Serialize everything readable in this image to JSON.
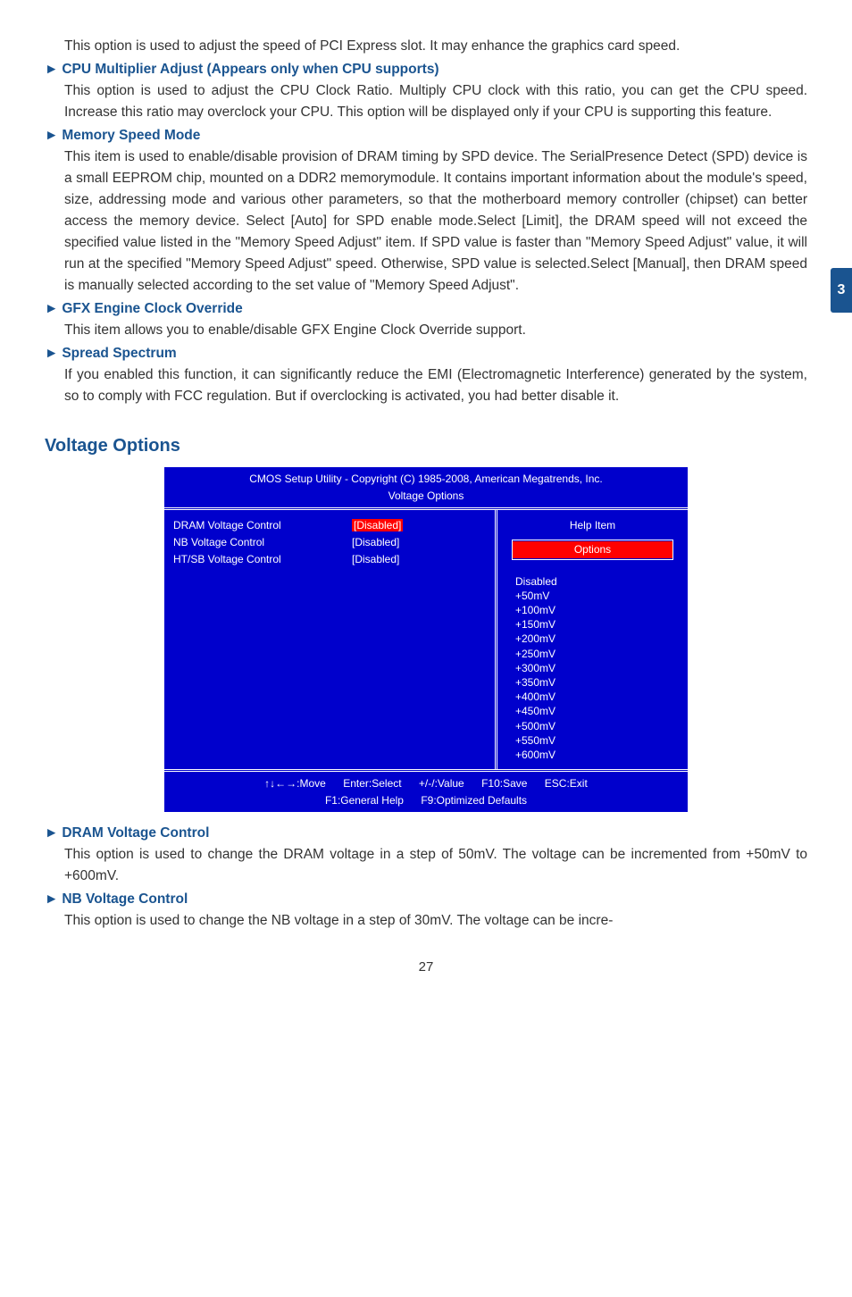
{
  "sideTab": "3",
  "intro_p1": "This option is used to adjust the speed of PCI Express slot. It may enhance the graphics card speed.",
  "sections": [
    {
      "title": "CPU Multiplier Adjust (Appears only when CPU supports)",
      "body": "This option is used to adjust the CPU Clock Ratio. Multiply CPU clock with this ratio, you can get the CPU speed. Increase this ratio may overclock your CPU. This option will be displayed only if your CPU is supporting this feature."
    },
    {
      "title": "Memory Speed Mode",
      "body": "This item is used to enable/disable provision of DRAM timing by SPD device. The SerialPresence Detect (SPD) device is a small EEPROM chip, mounted on a DDR2 memorymodule. It contains important information about the module's speed, size, addressing mode and various other parameters, so that the motherboard memory controller (chipset) can better access the memory device. Select [Auto] for SPD enable mode.Select [Limit], the DRAM speed will not exceed the specified value listed in the \"Memory Speed Adjust\" item. If SPD value is faster than \"Memory Speed Adjust\" value, it will run at the specified \"Memory Speed Adjust\" speed. Otherwise, SPD value is selected.Select [Manual], then DRAM speed is manually selected according to the set value of \"Memory Speed Adjust\"."
    },
    {
      "title": "GFX Engine Clock Override",
      "body": "This item allows you to enable/disable GFX Engine Clock Override support."
    },
    {
      "title": "Spread Spectrum",
      "body": "If you enabled this function, it can significantly reduce the EMI (Electromagnetic Interference) generated by the system, so to comply with FCC regulation. But if overclocking is activated, you had better disable it."
    }
  ],
  "voltageOptionsTitle": "Voltage Options",
  "bios": {
    "header1": "CMOS Setup Utility - Copyright (C) 1985-2008, American Megatrends, Inc.",
    "header2": "Voltage Options",
    "rows": [
      {
        "label": "DRAM Voltage Control",
        "value": "[Disabled]",
        "selected": true
      },
      {
        "label": "NB Voltage Control",
        "value": "[Disabled]",
        "selected": false
      },
      {
        "label": "HT/SB Voltage Control",
        "value": "[Disabled]",
        "selected": false
      }
    ],
    "helpItem": "Help Item",
    "optionsLabel": "Options",
    "options": [
      "Disabled",
      "+50mV",
      "+100mV",
      "+150mV",
      "+200mV",
      "+250mV",
      "+300mV",
      "+350mV",
      "+400mV",
      "+450mV",
      "+500mV",
      "+550mV",
      "+600mV"
    ],
    "footer1": {
      "move": "↑↓←→:Move",
      "select": "Enter:Select",
      "value": "+/-/:Value",
      "save": "F10:Save",
      "exit": "ESC:Exit"
    },
    "footer2": {
      "help": "F1:General Help",
      "defaults": "F9:Optimized Defaults"
    },
    "colors": {
      "background": "#0000cc",
      "highlight": "#ff0000",
      "text": "#ffffff"
    }
  },
  "post_sections": [
    {
      "title": "DRAM Voltage Control",
      "body": "This option is used to change the DRAM voltage in a step of 50mV. The voltage can be incremented from +50mV to +600mV."
    },
    {
      "title": "NB Voltage Control",
      "body": "This option is used to change the NB voltage in a step of 30mV. The voltage can be incre-"
    }
  ],
  "pageNumber": "27"
}
